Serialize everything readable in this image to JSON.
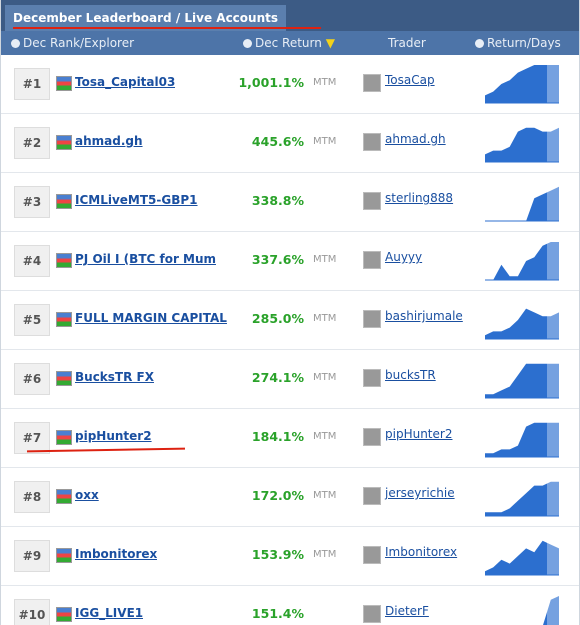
{
  "header": {
    "title": "December Leaderboard / Live Accounts"
  },
  "columns": [
    "Dec Rank/Explorer",
    "Dec Return",
    "Trader",
    "Return/Days"
  ],
  "rows": [
    {
      "rank": "#1",
      "name": "Tosa_Capital03",
      "return": "1,001.1%",
      "mtm": "MTM",
      "trader": "TosaCap"
    },
    {
      "rank": "#2",
      "name": "ahmad.gh",
      "return": "445.6%",
      "mtm": "MTM",
      "trader": "ahmad.gh"
    },
    {
      "rank": "#3",
      "name": "ICMLiveMT5-GBP1",
      "return": "338.8%",
      "trader": "sterling888"
    },
    {
      "rank": "#4",
      "name": "PJ Oil I (BTC for Mum",
      "return": "337.6%",
      "mtm": "MTM",
      "trader": "Auyyy"
    },
    {
      "rank": "#5",
      "name": "FULL MARGIN CAPITAL",
      "return": "285.0%",
      "mtm": "MTM",
      "trader": "bashirjumale"
    },
    {
      "rank": "#6",
      "name": "BucksTR FX",
      "return": "274.1%",
      "mtm": "MTM",
      "trader": "bucksTR"
    },
    {
      "rank": "#7",
      "name": "pipHunter2",
      "return": "184.1%",
      "mtm": "MTM",
      "trader": "pipHunter2"
    },
    {
      "rank": "#8",
      "name": "oxx",
      "return": "172.0%",
      "mtm": "MTM",
      "trader": "jerseyrichie"
    },
    {
      "rank": "#9",
      "name": "Imbonitorex",
      "return": "153.9%",
      "mtm": "MTM",
      "trader": "Imbonitorex"
    },
    {
      "rank": "#10",
      "name": "IGG_LIVE1",
      "return": "151.4%",
      "trader": "DieterF"
    }
  ]
}
